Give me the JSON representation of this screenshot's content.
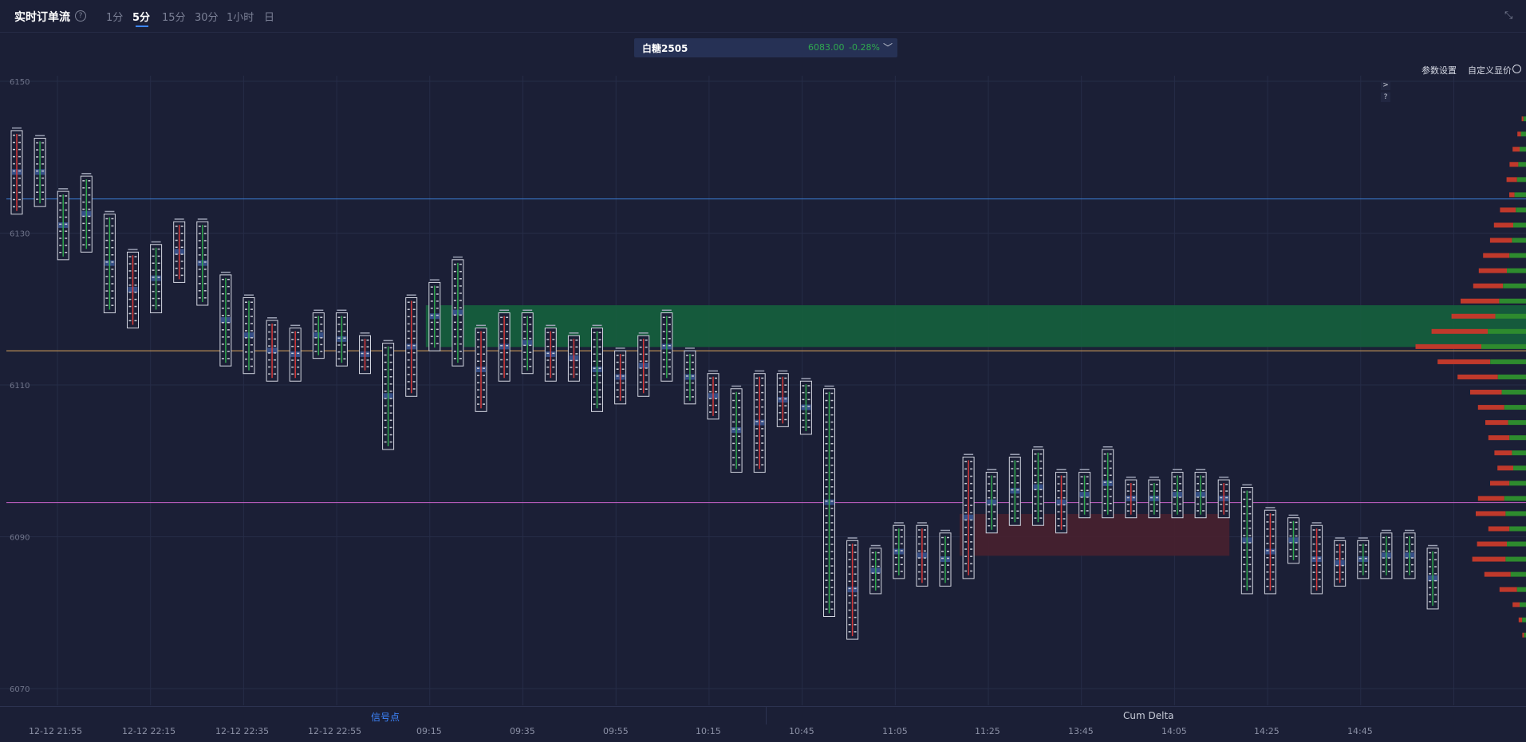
{
  "header": {
    "title": "实时订单流",
    "help": "?",
    "timeframes": [
      "1分",
      "5分",
      "15分",
      "30分",
      "1小时",
      "日"
    ],
    "active_timeframe": "5分",
    "collapse_icon": "collapse-arrows-icon"
  },
  "symbol": {
    "name": "白糖2505",
    "price": "6083.00",
    "change": "-0.28%",
    "chevron": "chevron-down-icon"
  },
  "toolbar": {
    "params_label": "参数设置",
    "custom_price_label": "自定义显价",
    "expand_btn": ">",
    "question_btn": "?"
  },
  "colors": {
    "background": "#1b1f36",
    "up": "#2fa84f",
    "down": "#d63a3a",
    "zone_green": "#15613d",
    "zone_red": "#48202f",
    "blue_line": "#3d7fd6",
    "orange_line": "#d9a25a",
    "purple_line": "#c962c9",
    "accent": "#3d86ff"
  },
  "chart_data": {
    "type": "footprint",
    "y_ticks": [
      6150,
      6130,
      6110,
      6090,
      6070
    ],
    "x_labels": [
      "12-12 21:55",
      "12-12 22:15",
      "12-12 22:35",
      "12-12 22:55",
      "09:15",
      "09:35",
      "09:55",
      "10:15",
      "10:45",
      "11:05",
      "11:25",
      "13:45",
      "14:05",
      "14:25",
      "14:45"
    ],
    "ylim": [
      6068,
      6152
    ],
    "horizontal_lines": [
      {
        "price": 6134.5,
        "color": "#3d7fd6"
      },
      {
        "price": 6114.5,
        "color": "#d9a25a"
      },
      {
        "price": 6094.5,
        "color": "#c962c9"
      }
    ],
    "zones": [
      {
        "from_bar": 18,
        "to_bar": 64,
        "y_high": 6120.5,
        "y_low": 6115.0,
        "color": "#15613d"
      },
      {
        "from_bar": 41,
        "to_bar": 52,
        "y_high": 6093.0,
        "y_low": 6087.5,
        "color": "#48202f"
      }
    ],
    "candles": [
      {
        "high": 6143,
        "low": 6133,
        "up": false
      },
      {
        "high": 6142,
        "low": 6134,
        "up": true
      },
      {
        "high": 6135,
        "low": 6127,
        "up": true
      },
      {
        "high": 6137,
        "low": 6128,
        "up": true
      },
      {
        "high": 6132,
        "low": 6120,
        "up": true
      },
      {
        "high": 6127,
        "low": 6118,
        "up": false
      },
      {
        "high": 6128,
        "low": 6120,
        "up": true
      },
      {
        "high": 6131,
        "low": 6124,
        "up": false
      },
      {
        "high": 6131,
        "low": 6121,
        "up": true
      },
      {
        "high": 6124,
        "low": 6113,
        "up": true
      },
      {
        "high": 6121,
        "low": 6112,
        "up": true
      },
      {
        "high": 6118,
        "low": 6111,
        "up": false
      },
      {
        "high": 6117,
        "low": 6111,
        "up": false
      },
      {
        "high": 6119,
        "low": 6114,
        "up": true
      },
      {
        "high": 6119,
        "low": 6113,
        "up": true
      },
      {
        "high": 6116,
        "low": 6112,
        "up": false
      },
      {
        "high": 6115,
        "low": 6102,
        "up": true
      },
      {
        "high": 6121,
        "low": 6109,
        "up": false
      },
      {
        "high": 6123,
        "low": 6115,
        "up": true
      },
      {
        "high": 6126,
        "low": 6113,
        "up": true
      },
      {
        "high": 6117,
        "low": 6107,
        "up": false
      },
      {
        "high": 6119,
        "low": 6111,
        "up": false
      },
      {
        "high": 6119,
        "low": 6112,
        "up": true
      },
      {
        "high": 6117,
        "low": 6111,
        "up": false
      },
      {
        "high": 6116,
        "low": 6111,
        "up": false
      },
      {
        "high": 6117,
        "low": 6107,
        "up": true
      },
      {
        "high": 6114,
        "low": 6108,
        "up": false
      },
      {
        "high": 6116,
        "low": 6109,
        "up": false
      },
      {
        "high": 6119,
        "low": 6111,
        "up": true
      },
      {
        "high": 6114,
        "low": 6108,
        "up": true
      },
      {
        "high": 6111,
        "low": 6106,
        "up": false
      },
      {
        "high": 6109,
        "low": 6099,
        "up": true
      },
      {
        "high": 6111,
        "low": 6099,
        "up": false
      },
      {
        "high": 6111,
        "low": 6105,
        "up": false
      },
      {
        "high": 6110,
        "low": 6104,
        "up": true
      },
      {
        "high": 6109,
        "low": 6080,
        "up": true
      },
      {
        "high": 6089,
        "low": 6077,
        "up": false
      },
      {
        "high": 6088,
        "low": 6083,
        "up": true
      },
      {
        "high": 6091,
        "low": 6085,
        "up": true
      },
      {
        "high": 6091,
        "low": 6084,
        "up": false
      },
      {
        "high": 6090,
        "low": 6084,
        "up": true
      },
      {
        "high": 6100,
        "low": 6085,
        "up": false
      },
      {
        "high": 6098,
        "low": 6091,
        "up": true
      },
      {
        "high": 6100,
        "low": 6092,
        "up": true
      },
      {
        "high": 6101,
        "low": 6092,
        "up": true
      },
      {
        "high": 6098,
        "low": 6091,
        "up": false
      },
      {
        "high": 6098,
        "low": 6093,
        "up": true
      },
      {
        "high": 6101,
        "low": 6093,
        "up": true
      },
      {
        "high": 6097,
        "low": 6093,
        "up": false
      },
      {
        "high": 6097,
        "low": 6093,
        "up": true
      },
      {
        "high": 6098,
        "low": 6093,
        "up": true
      },
      {
        "high": 6098,
        "low": 6093,
        "up": true
      },
      {
        "high": 6097,
        "low": 6093,
        "up": false
      },
      {
        "high": 6096,
        "low": 6083,
        "up": true
      },
      {
        "high": 6093,
        "low": 6083,
        "up": false
      },
      {
        "high": 6092,
        "low": 6087,
        "up": true
      },
      {
        "high": 6091,
        "low": 6083,
        "up": false
      },
      {
        "high": 6089,
        "low": 6084,
        "up": false
      },
      {
        "high": 6089,
        "low": 6085,
        "up": true
      },
      {
        "high": 6090,
        "low": 6085,
        "up": true
      },
      {
        "high": 6090,
        "low": 6085,
        "up": true
      },
      {
        "high": 6088,
        "low": 6081,
        "up": true
      }
    ],
    "volume_profile": [
      {
        "price": 6145,
        "buy": 4,
        "sell": 2
      },
      {
        "price": 6143,
        "buy": 8,
        "sell": 4
      },
      {
        "price": 6141,
        "buy": 10,
        "sell": 8
      },
      {
        "price": 6139,
        "buy": 12,
        "sell": 10
      },
      {
        "price": 6137,
        "buy": 14,
        "sell": 12
      },
      {
        "price": 6135,
        "buy": 18,
        "sell": 6
      },
      {
        "price": 6133,
        "buy": 16,
        "sell": 18
      },
      {
        "price": 6131,
        "buy": 20,
        "sell": 22
      },
      {
        "price": 6129,
        "buy": 22,
        "sell": 25
      },
      {
        "price": 6127,
        "buy": 26,
        "sell": 30
      },
      {
        "price": 6125,
        "buy": 30,
        "sell": 32
      },
      {
        "price": 6123,
        "buy": 36,
        "sell": 34
      },
      {
        "price": 6121,
        "buy": 42,
        "sell": 44
      },
      {
        "price": 6119,
        "buy": 48,
        "sell": 50
      },
      {
        "price": 6117,
        "buy": 60,
        "sell": 64
      },
      {
        "price": 6115,
        "buy": 70,
        "sell": 75
      },
      {
        "price": 6113,
        "buy": 56,
        "sell": 60
      },
      {
        "price": 6111,
        "buy": 44,
        "sell": 46
      },
      {
        "price": 6109,
        "buy": 38,
        "sell": 36
      },
      {
        "price": 6107,
        "buy": 34,
        "sell": 30
      },
      {
        "price": 6105,
        "buy": 28,
        "sell": 26
      },
      {
        "price": 6103,
        "buy": 26,
        "sell": 24
      },
      {
        "price": 6101,
        "buy": 22,
        "sell": 20
      },
      {
        "price": 6099,
        "buy": 20,
        "sell": 18
      },
      {
        "price": 6097,
        "buy": 26,
        "sell": 22
      },
      {
        "price": 6095,
        "buy": 34,
        "sell": 30
      },
      {
        "price": 6093,
        "buy": 32,
        "sell": 34
      },
      {
        "price": 6091,
        "buy": 26,
        "sell": 24
      },
      {
        "price": 6089,
        "buy": 30,
        "sell": 34
      },
      {
        "price": 6087,
        "buy": 32,
        "sell": 38
      },
      {
        "price": 6085,
        "buy": 24,
        "sell": 30
      },
      {
        "price": 6083,
        "buy": 14,
        "sell": 20
      },
      {
        "price": 6081,
        "buy": 10,
        "sell": 8
      },
      {
        "price": 6079,
        "buy": 6,
        "sell": 4
      },
      {
        "price": 6077,
        "buy": 3,
        "sell": 2
      }
    ]
  },
  "bottom_tabs": {
    "signal": "信号点",
    "cum_delta": "Cum Delta"
  }
}
